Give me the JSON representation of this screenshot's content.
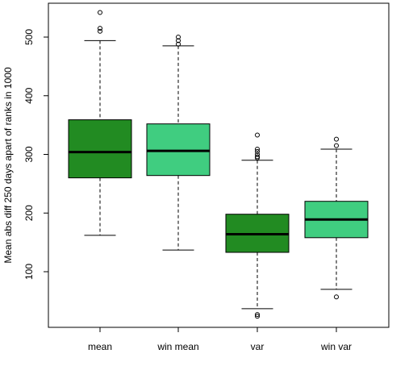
{
  "chart_data": {
    "type": "boxplot",
    "title": "",
    "xlabel": "",
    "ylabel": "Mean abs diff 250 days apart of ranks in 1000",
    "ylim": [
      0,
      550
    ],
    "yticks": [
      100,
      200,
      300,
      400,
      500
    ],
    "grid": false,
    "categories": [
      "mean",
      "win mean",
      "var",
      "win var"
    ],
    "series": [
      {
        "category": "mean",
        "color": "#228b22",
        "whisker_low": 162,
        "q1": 260,
        "median": 304,
        "q3": 359,
        "whisker_high": 494,
        "outliers": [
          510,
          515,
          542
        ]
      },
      {
        "category": "win mean",
        "color": "#40cd80",
        "whisker_low": 137,
        "q1": 264,
        "median": 306,
        "q3": 352,
        "whisker_high": 485,
        "outliers": [
          488,
          494,
          500
        ]
      },
      {
        "category": "var",
        "color": "#228b22",
        "whisker_low": 37,
        "q1": 133,
        "median": 164,
        "q3": 198,
        "whisker_high": 290,
        "outliers": [
          24,
          27,
          294,
          296,
          300,
          305,
          309,
          333
        ]
      },
      {
        "category": "win var",
        "color": "#40cd80",
        "whisker_low": 70,
        "q1": 158,
        "median": 189,
        "q3": 220,
        "whisker_high": 309,
        "outliers": [
          57,
          315,
          326
        ]
      }
    ]
  }
}
